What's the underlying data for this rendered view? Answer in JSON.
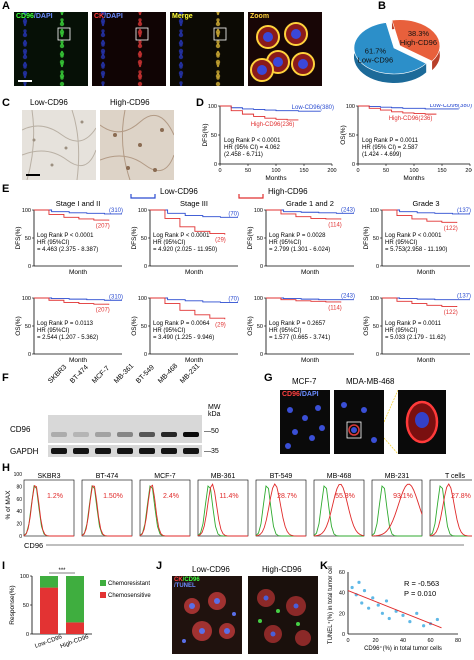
{
  "panels": {
    "A": "A",
    "B": "B",
    "C": "C",
    "D": "D",
    "E": "E",
    "F": "F",
    "G": "G",
    "H": "H",
    "I": "I",
    "J": "J",
    "K": "K"
  },
  "panelA": {
    "labels": [
      {
        "parts": [
          {
            "text": "CD96",
            "color": "#3cff3c"
          },
          {
            "text": "/DAPI",
            "color": "#6b8cff"
          }
        ]
      },
      {
        "parts": [
          {
            "text": "CK",
            "color": "#ff3c3c"
          },
          {
            "text": "/DAPI",
            "color": "#6b8cff"
          }
        ]
      },
      {
        "parts": [
          {
            "text": "Merge",
            "color": "#ffff3c"
          }
        ]
      },
      {
        "parts": [
          {
            "text": "Zoom",
            "color": "#ffd23c"
          }
        ]
      }
    ]
  },
  "panelB": {
    "chart_data": {
      "type": "pie",
      "categories": [
        "High-CD96",
        "Low-CD96"
      ],
      "values": [
        38.3,
        61.7
      ],
      "value_labels": [
        "38.3%",
        "61.7%"
      ],
      "colors": [
        "#e8603c",
        "#2c8fc9"
      ]
    }
  },
  "panelC": {
    "low": "Low-CD96",
    "high": "High-CD96"
  },
  "panelD": {
    "chart_data": [
      {
        "type": "line",
        "ylabel": "DFS(%)",
        "xlabel": "Months",
        "xlim": [
          0,
          200
        ],
        "ylim": [
          0,
          100
        ],
        "xticks": [
          "0",
          "50",
          "100",
          "150",
          "200"
        ],
        "yticks": [
          "0",
          "50",
          "100"
        ],
        "series": [
          {
            "name": "Low-CD96(380)",
            "color": "#2a4bd0",
            "x": [
              0,
              20,
              40,
              60,
              80,
              100,
              120,
              140,
              160,
              180
            ],
            "y": [
              100,
              97,
              95,
              94,
              93,
              92,
              92,
              91,
              91,
              91
            ]
          },
          {
            "name": "High-CD96(236)",
            "color": "#e03030",
            "x": [
              0,
              20,
              40,
              60,
              80,
              100,
              120,
              140
            ],
            "y": [
              100,
              92,
              86,
              82,
              79,
              77,
              76,
              76
            ]
          }
        ],
        "stats": [
          "Log Rank P < 0.0001",
          "HR (95% CI) = 4.062",
          "(2.458 - 6.711)"
        ]
      },
      {
        "type": "line",
        "ylabel": "OS(%)",
        "xlabel": "Months",
        "xlim": [
          0,
          200
        ],
        "ylim": [
          0,
          100
        ],
        "xticks": [
          "0",
          "50",
          "100",
          "150",
          "200"
        ],
        "yticks": [
          "0",
          "50",
          "100"
        ],
        "series": [
          {
            "name": "Low-CD96(380)",
            "color": "#2a4bd0",
            "x": [
              0,
              20,
              40,
              60,
              80,
              100,
              120,
              140,
              160,
              180
            ],
            "y": [
              100,
              99,
              98,
              97,
              96,
              96,
              95,
              95,
              95,
              95
            ]
          },
          {
            "name": "High-CD96(236)",
            "color": "#e03030",
            "x": [
              0,
              20,
              40,
              60,
              80,
              100,
              120,
              140
            ],
            "y": [
              100,
              96,
              93,
              90,
              88,
              87,
              86,
              86
            ]
          }
        ],
        "stats": [
          "Log Rank P = 0.0011",
          "HR (95% CI) = 2.587",
          "(1.424 - 4.699)"
        ]
      }
    ]
  },
  "panelE": {
    "legend": {
      "low": "Low-CD96",
      "high": "High-CD96"
    },
    "titles": [
      "Stage I and II",
      "Stage III",
      "Grade 1 and 2",
      "Grade 3"
    ],
    "chart_data": [
      {
        "type": "line",
        "ylabel": "DFS(%)",
        "xlabel": "Month",
        "ylim": [
          0,
          100
        ],
        "yticks": [
          "0",
          "50",
          "100"
        ],
        "series": [
          {
            "name": "(310)",
            "color": "#2a4bd0",
            "y": [
              100,
              97,
              95,
              94,
              93,
              93
            ]
          },
          {
            "name": "(207)",
            "color": "#e03030",
            "y": [
              100,
              92,
              87,
              84,
              82,
              81
            ]
          }
        ],
        "stats": [
          "Log Rank P < 0.0001",
          "HR (95%CI)",
          "= 4.463 (2.375 - 8.387)"
        ]
      },
      {
        "type": "line",
        "ylabel": "DFS(%)",
        "xlabel": "Month",
        "ylim": [
          0,
          100
        ],
        "yticks": [
          "0",
          "50",
          "100"
        ],
        "series": [
          {
            "name": "(70)",
            "color": "#2a4bd0",
            "y": [
              100,
              94,
              90,
              88,
              87,
              87
            ]
          },
          {
            "name": "(29)",
            "color": "#e03030",
            "y": [
              100,
              85,
              70,
              62,
              58,
              56
            ]
          }
        ],
        "stats": [
          "Log Rank P < 0.0001",
          "HR (95%CI)",
          "= 4.920 (2.025 - 11.950)"
        ]
      },
      {
        "type": "line",
        "ylabel": "DFS(%)",
        "xlabel": "Month",
        "ylim": [
          0,
          100
        ],
        "yticks": [
          "0",
          "50",
          "100"
        ],
        "series": [
          {
            "name": "(243)",
            "color": "#2a4bd0",
            "y": [
              100,
              97,
              96,
              95,
              94,
              94
            ]
          },
          {
            "name": "(114)",
            "color": "#e03030",
            "y": [
              100,
              93,
              88,
              85,
              84,
              83
            ]
          }
        ],
        "stats": [
          "Log Rank P = 0.0028",
          "HR (95%CI)",
          "= 2.799 (1.301 - 6.024)"
        ]
      },
      {
        "type": "line",
        "ylabel": "DFS(%)",
        "xlabel": "Month",
        "ylim": [
          0,
          100
        ],
        "yticks": [
          "0",
          "50",
          "100"
        ],
        "series": [
          {
            "name": "(137)",
            "color": "#2a4bd0",
            "y": [
              100,
              97,
              95,
              94,
              93,
              93
            ]
          },
          {
            "name": "(122)",
            "color": "#e03030",
            "y": [
              100,
              90,
              84,
              80,
              78,
              77
            ]
          }
        ],
        "stats": [
          "Log Rank P < 0.0001",
          "HR (95%CI)",
          "= 5.753(2.958 - 11.190)"
        ]
      },
      {
        "type": "line",
        "ylabel": "OS(%)",
        "xlabel": "Month",
        "ylim": [
          0,
          100
        ],
        "yticks": [
          "0",
          "50",
          "100"
        ],
        "series": [
          {
            "name": "(310)",
            "color": "#2a4bd0",
            "y": [
              100,
              99,
              98,
              97,
              96,
              96
            ]
          },
          {
            "name": "(207)",
            "color": "#e03030",
            "y": [
              100,
              96,
              92,
              90,
              89,
              88
            ]
          }
        ],
        "stats": [
          "Log Rank P = 0.0113",
          "HR (95%CI)",
          "= 2.544 (1.207 - 5.362)"
        ]
      },
      {
        "type": "line",
        "ylabel": "OS(%)",
        "xlabel": "Month",
        "ylim": [
          0,
          100
        ],
        "yticks": [
          "0",
          "50",
          "100"
        ],
        "series": [
          {
            "name": "(70)",
            "color": "#2a4bd0",
            "y": [
              100,
              97,
              95,
              93,
              92,
              92
            ]
          },
          {
            "name": "(29)",
            "color": "#e03030",
            "y": [
              100,
              90,
              78,
              70,
              64,
              62
            ]
          }
        ],
        "stats": [
          "Log Rank P = 0.0064",
          "HR (95%CI)",
          "= 3.490 (1.225 - 9.946)"
        ]
      },
      {
        "type": "line",
        "ylabel": "OS(%)",
        "xlabel": "Month",
        "ylim": [
          0,
          100
        ],
        "yticks": [
          "0",
          "50",
          "100"
        ],
        "series": [
          {
            "name": "(243)",
            "color": "#2a4bd0",
            "y": [
              100,
              99,
              98,
              97,
              97,
              97
            ]
          },
          {
            "name": "(114)",
            "color": "#e03030",
            "y": [
              100,
              97,
              95,
              94,
              93,
              92
            ]
          }
        ],
        "stats": [
          "Log Rank P = 0.2657",
          "HR (95%CI)",
          "= 1.577 (0.665 - 3.741)"
        ]
      },
      {
        "type": "line",
        "ylabel": "OS(%)",
        "xlabel": "Month",
        "ylim": [
          0,
          100
        ],
        "yticks": [
          "0",
          "50",
          "100"
        ],
        "series": [
          {
            "name": "(137)",
            "color": "#2a4bd0",
            "y": [
              100,
              99,
              98,
              97,
              97,
              97
            ]
          },
          {
            "name": "(122)",
            "color": "#e03030",
            "y": [
              100,
              94,
              90,
              87,
              85,
              84
            ]
          }
        ],
        "stats": [
          "Log Rank P = 0.0011",
          "HR (95%CI)",
          "= 5.033 (2.179 - 11.62)"
        ]
      }
    ]
  },
  "panelF": {
    "lanes": [
      "SKBR3",
      "BT-474",
      "MCF-7",
      "MB-361",
      "BT-549",
      "MB-468",
      "MB-231"
    ],
    "rows": [
      "CD96",
      "GAPDH"
    ],
    "mw_label": "MW\nkDa",
    "markers": [
      "—50",
      "—35"
    ],
    "cd96_intensity": [
      0.15,
      0.1,
      0.2,
      0.35,
      0.6,
      0.85,
      1.0
    ]
  },
  "panelG": {
    "left": "MCF-7",
    "right": "MDA-MB-468",
    "stain": [
      {
        "text": "CD96",
        "color": "#ff4040"
      },
      {
        "text": "/DAPI",
        "color": "#6b8cff"
      }
    ]
  },
  "panelH": {
    "ylabel": "% of MAX",
    "xlabel": "CD96",
    "yticks": [
      "0",
      "20",
      "40",
      "60",
      "80",
      "100"
    ],
    "chart_data": {
      "type": "area",
      "categories": [
        "SKBR3",
        "BT-474",
        "MCF-7",
        "MB-361",
        "BT-549",
        "MB-468",
        "MB-231",
        "T cells"
      ],
      "values": [
        "1.2%",
        "1.50%",
        "2.4%",
        "11.4%",
        "28.7%",
        "55.3%",
        "93.1%",
        "27.8%"
      ]
    }
  },
  "panelI": {
    "chart_data": {
      "type": "bar",
      "categories": [
        "Low-CD96",
        "High-CD96"
      ],
      "series": [
        {
          "name": "Chemoresistant",
          "color": "#3fae3f",
          "values": [
            20,
            80
          ]
        },
        {
          "name": "Chemosensitive",
          "color": "#e33333",
          "values": [
            80,
            20
          ]
        }
      ],
      "ylabel": "Response(%)",
      "ylim": [
        0,
        100
      ],
      "yticks": [
        "0",
        "50",
        "100"
      ],
      "significance": "***"
    }
  },
  "panelJ": {
    "low": "Low-CD96",
    "high": "High-CD96",
    "stain": [
      {
        "text": "CK",
        "color": "#ff4040"
      },
      {
        "text": "/CD96",
        "color": "#40ff40"
      },
      {
        "text": "/TUNEL",
        "color": "#6b8cff"
      }
    ]
  },
  "panelK": {
    "chart_data": {
      "type": "scatter",
      "xlabel": "CD96⁺(%) in total tumor cells",
      "ylabel": "TUNEL⁺(%) in total tumor cells",
      "xlim": [
        0,
        80
      ],
      "ylim": [
        0,
        60
      ],
      "xticks": [
        "0",
        "20",
        "40",
        "60",
        "80"
      ],
      "yticks": [
        "0",
        "20",
        "40",
        "60"
      ],
      "x": [
        3,
        6,
        8,
        10,
        12,
        15,
        18,
        22,
        25,
        28,
        30,
        35,
        40,
        45,
        50,
        55,
        60,
        65
      ],
      "y": [
        45,
        38,
        50,
        30,
        42,
        25,
        35,
        28,
        20,
        32,
        15,
        22,
        18,
        12,
        20,
        8,
        10,
        14
      ],
      "stats": [
        "R = -0.563",
        "P = 0.010"
      ]
    }
  }
}
